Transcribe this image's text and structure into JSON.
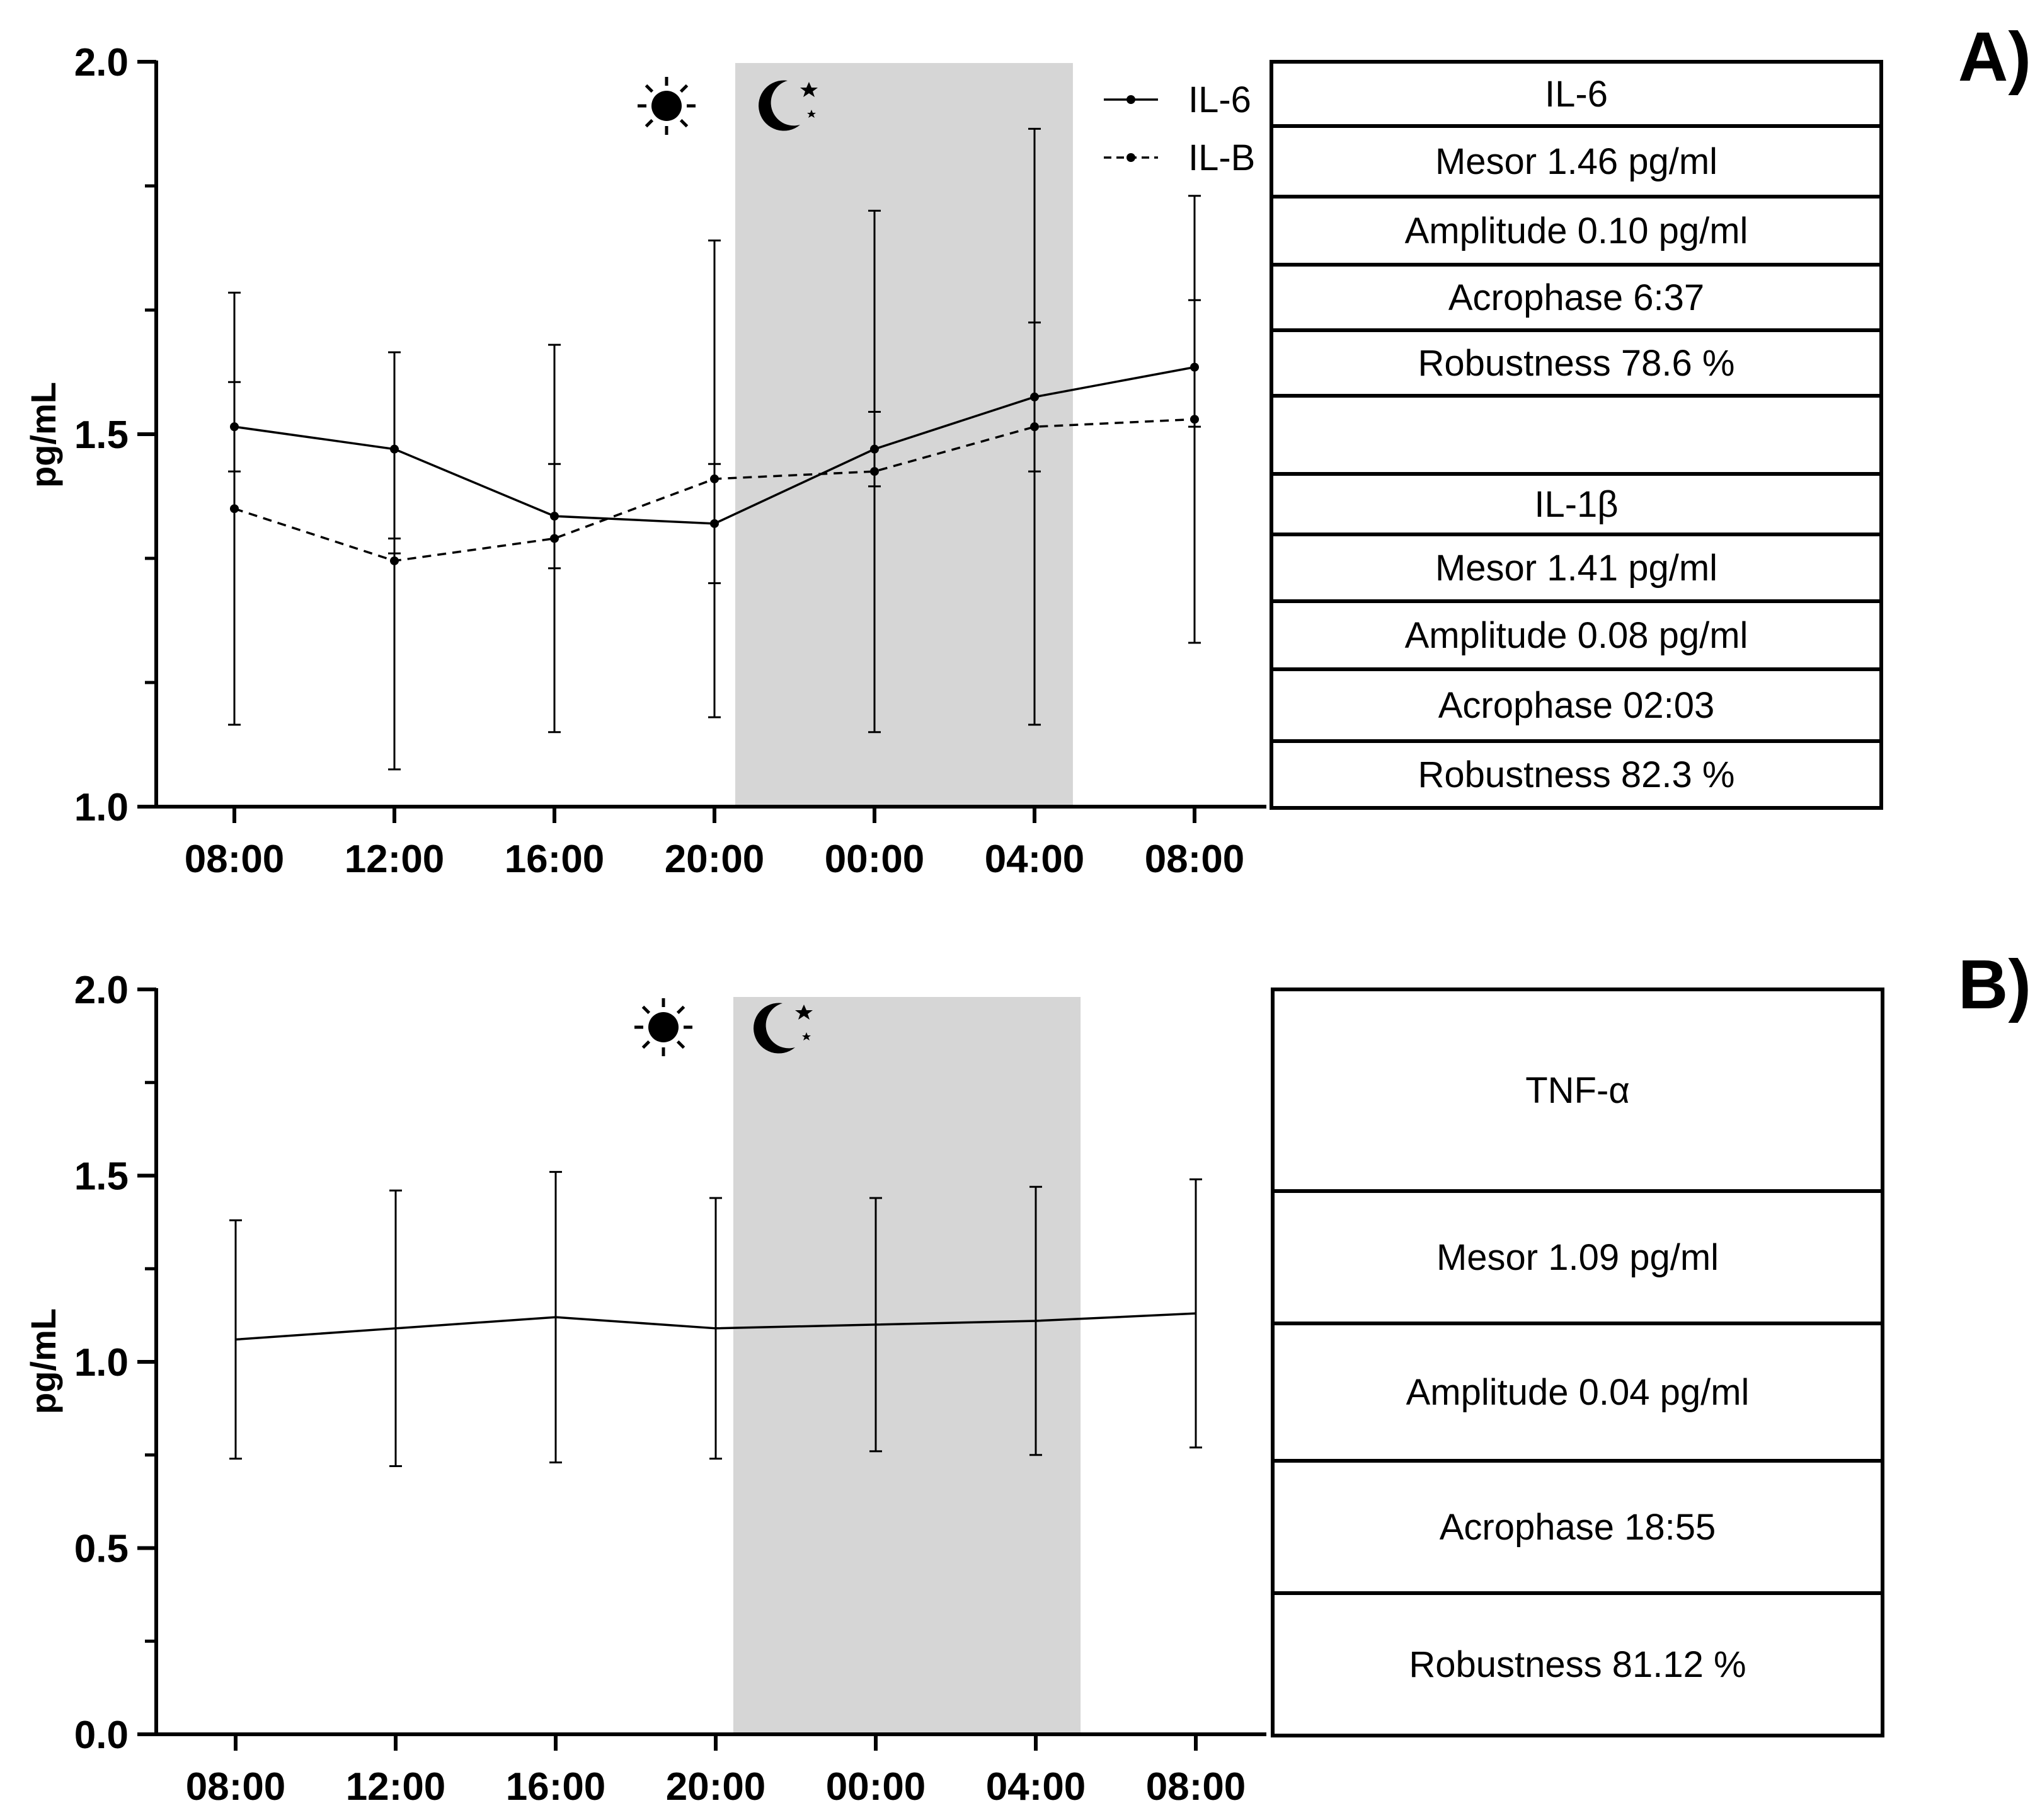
{
  "chart_data": [
    {
      "type": "line",
      "panel_label": "A)",
      "ylabel": "pg/mL",
      "xlabel": "",
      "ylim": [
        1.0,
        2.0
      ],
      "yticks": [
        1.0,
        1.5,
        2.0
      ],
      "ytick_labels": [
        "1.0",
        "1.5",
        "2.0"
      ],
      "categories": [
        "08:00",
        "12:00",
        "16:00",
        "20:00",
        "00:00",
        "04:00",
        "08:00"
      ],
      "night_band": {
        "start_index": 3.13,
        "end_index": 5.24
      },
      "symbols": {
        "sun": "sun-icon",
        "moon": "moon-stars-icon"
      },
      "series": [
        {
          "name": "IL-6",
          "line_style": "solid",
          "values": [
            1.51,
            1.48,
            1.39,
            1.38,
            1.48,
            1.55,
            1.59
          ],
          "err_low": [
            1.11,
            1.05,
            1.1,
            1.12,
            1.1,
            1.11,
            1.22
          ],
          "err_high": [
            1.69,
            1.61,
            1.62,
            1.76,
            1.8,
            1.91,
            1.82
          ]
        },
        {
          "name": "IL-B",
          "line_style": "dashed",
          "values": [
            1.4,
            1.33,
            1.36,
            1.44,
            1.45,
            1.51,
            1.52
          ],
          "err_low": [
            1.45,
            1.34,
            1.32,
            1.3,
            1.43,
            1.45,
            1.51
          ],
          "err_high": [
            1.57,
            1.36,
            1.46,
            1.46,
            1.53,
            1.65,
            1.68
          ]
        }
      ],
      "legend": [
        "IL-6",
        "IL-B"
      ],
      "table_rows": [
        "IL-6",
        "Mesor 1.46 pg/ml",
        "Amplitude 0.10 pg/ml",
        "Acrophase 6:37",
        "Robustness 78.6 %",
        "",
        "IL-1β",
        "Mesor 1.41 pg/ml",
        "Amplitude 0.08 pg/ml",
        "Acrophase 02:03",
        "Robustness 82.3 %"
      ]
    },
    {
      "type": "line",
      "panel_label": "B)",
      "ylabel": "pg/mL",
      "xlabel": "",
      "ylim": [
        0.0,
        2.0
      ],
      "yticks": [
        0.0,
        0.5,
        1.0,
        1.5,
        2.0
      ],
      "ytick_labels": [
        "0.0",
        "0.5",
        "1.0",
        "1.5",
        "2.0"
      ],
      "categories": [
        "08:00",
        "12:00",
        "16:00",
        "20:00",
        "00:00",
        "04:00",
        "08:00"
      ],
      "night_band": {
        "start_index": 3.11,
        "end_index": 5.28
      },
      "symbols": {
        "sun": "sun-icon",
        "moon": "moon-stars-icon"
      },
      "series": [
        {
          "name": "TNF-α",
          "line_style": "solid",
          "values": [
            1.06,
            1.09,
            1.12,
            1.09,
            1.1,
            1.11,
            1.13
          ],
          "err_low": [
            0.74,
            0.72,
            0.73,
            0.74,
            0.76,
            0.75,
            0.77
          ],
          "err_high": [
            1.38,
            1.46,
            1.51,
            1.44,
            1.44,
            1.47,
            1.49
          ]
        }
      ],
      "legend": [],
      "table_rows": [
        "TNF-α",
        "Mesor 1.09 pg/ml",
        "Amplitude 0.04 pg/ml",
        "Acrophase 18:55",
        "Robustness 81.12 %"
      ]
    }
  ]
}
